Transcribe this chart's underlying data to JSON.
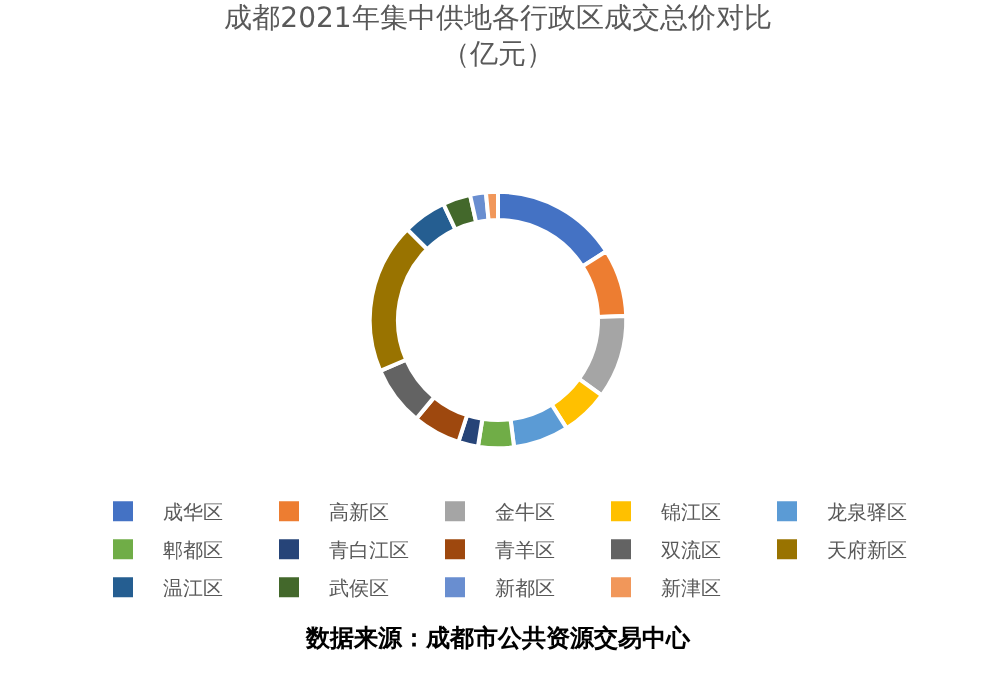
{
  "chart_data": {
    "type": "donut",
    "title": "成都2021年集中供地各行政区成交总价对比",
    "subtitle": "（亿元）",
    "categories": [
      "成华区",
      "高新区",
      "金牛区",
      "锦江区",
      "龙泉驿区",
      "郫都区",
      "青白江区",
      "青羊区",
      "双流区",
      "天府新区",
      "温江区",
      "武侯区",
      "新都区",
      "新津区"
    ],
    "values": [
      16,
      8.5,
      10.5,
      6,
      7,
      4.5,
      2.5,
      6,
      7.5,
      19,
      5.5,
      3.5,
      2,
      1.5
    ],
    "colors": [
      "#4472c4",
      "#ed7d31",
      "#a5a5a5",
      "#ffc000",
      "#5b9bd5",
      "#70ad47",
      "#264478",
      "#9e480e",
      "#636363",
      "#997300",
      "#255e91",
      "#43682b",
      "#698ed0",
      "#f1975a"
    ],
    "legend": "bottom",
    "annotations": [
      "数据来源：成都市公共资源交易中心"
    ]
  }
}
